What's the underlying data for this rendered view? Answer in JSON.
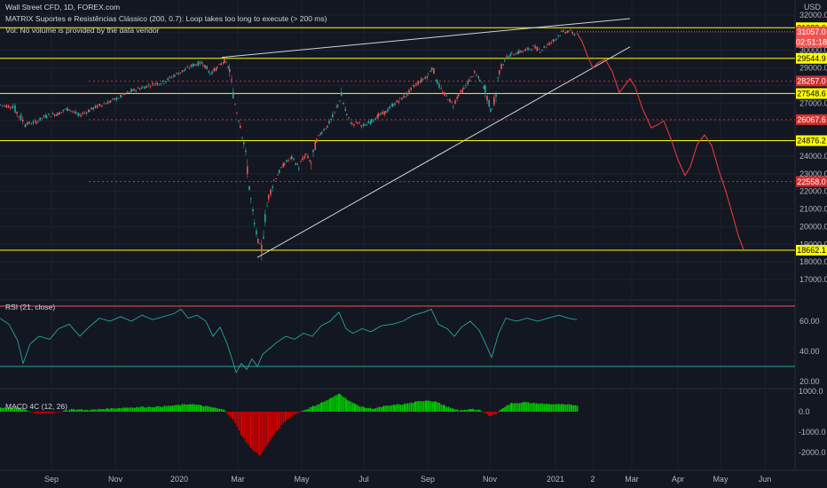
{
  "header": {
    "symbol": "Wall Street CFD, 1D, FOREX.com",
    "indicator": "MATRIX Suportes e Resistências Clássico (200, 0.7): Loop takes too long to execute (> 200 ms)",
    "volume_note": "Vol: No volume is provided by the data vendor",
    "currency": "USD"
  },
  "colors": {
    "background": "#131722",
    "grid": "#1e222d",
    "up": "#26a69a",
    "down": "#ef5350",
    "support": "#ffff00",
    "dotted": "#d32f2f",
    "projection": "#e53935",
    "trendline": "#d1d4dc",
    "rsi": "#26a69a",
    "rsi_band": "#ef5350",
    "macd_up": "#00c800",
    "macd_down": "#d00000"
  },
  "chart_data": [
    {
      "type": "candlestick",
      "title": "Wall Street CFD, 1D, FOREX.com",
      "ylim": [
        17000,
        32000
      ],
      "y_ticks": [
        32000,
        31000,
        30000,
        29000,
        28000,
        27000,
        26000,
        25000,
        24000,
        23000,
        22000,
        21000,
        20000,
        19000,
        18000,
        17000
      ],
      "x_ticks": [
        "Sep",
        "Nov",
        "2020",
        "Mar",
        "May",
        "Jul",
        "Sep",
        "Nov",
        "2021",
        "2",
        "Mar",
        "Apr",
        "May",
        "Jun"
      ],
      "price_path": [
        {
          "x": 0,
          "y": 26900
        },
        {
          "x": 14,
          "y": 26800
        },
        {
          "x": 28,
          "y": 25800
        },
        {
          "x": 40,
          "y": 25950
        },
        {
          "x": 52,
          "y": 26300
        },
        {
          "x": 64,
          "y": 26400
        },
        {
          "x": 76,
          "y": 26700
        },
        {
          "x": 88,
          "y": 26300
        },
        {
          "x": 100,
          "y": 26600
        },
        {
          "x": 112,
          "y": 26900
        },
        {
          "x": 124,
          "y": 27100
        },
        {
          "x": 136,
          "y": 27400
        },
        {
          "x": 148,
          "y": 27700
        },
        {
          "x": 160,
          "y": 27900
        },
        {
          "x": 172,
          "y": 28100
        },
        {
          "x": 184,
          "y": 28200
        },
        {
          "x": 196,
          "y": 28600
        },
        {
          "x": 208,
          "y": 28900
        },
        {
          "x": 218,
          "y": 29200
        },
        {
          "x": 228,
          "y": 29300
        },
        {
          "x": 236,
          "y": 28700
        },
        {
          "x": 244,
          "y": 29000
        },
        {
          "x": 252,
          "y": 29400
        },
        {
          "x": 258,
          "y": 28900
        },
        {
          "x": 262,
          "y": 27500
        },
        {
          "x": 266,
          "y": 26500
        },
        {
          "x": 270,
          "y": 25800
        },
        {
          "x": 274,
          "y": 24800
        },
        {
          "x": 278,
          "y": 23300
        },
        {
          "x": 282,
          "y": 21500
        },
        {
          "x": 286,
          "y": 20100
        },
        {
          "x": 290,
          "y": 19200
        },
        {
          "x": 294,
          "y": 18700
        },
        {
          "x": 298,
          "y": 20500
        },
        {
          "x": 302,
          "y": 21700
        },
        {
          "x": 308,
          "y": 22600
        },
        {
          "x": 314,
          "y": 23100
        },
        {
          "x": 320,
          "y": 23600
        },
        {
          "x": 328,
          "y": 23900
        },
        {
          "x": 336,
          "y": 23400
        },
        {
          "x": 344,
          "y": 24100
        },
        {
          "x": 350,
          "y": 23600
        },
        {
          "x": 356,
          "y": 24900
        },
        {
          "x": 362,
          "y": 25400
        },
        {
          "x": 368,
          "y": 25700
        },
        {
          "x": 374,
          "y": 26200
        },
        {
          "x": 380,
          "y": 26900
        },
        {
          "x": 384,
          "y": 27400
        },
        {
          "x": 390,
          "y": 26300
        },
        {
          "x": 396,
          "y": 25800
        },
        {
          "x": 402,
          "y": 25900
        },
        {
          "x": 410,
          "y": 25700
        },
        {
          "x": 418,
          "y": 26000
        },
        {
          "x": 426,
          "y": 26300
        },
        {
          "x": 434,
          "y": 26500
        },
        {
          "x": 442,
          "y": 26900
        },
        {
          "x": 450,
          "y": 27200
        },
        {
          "x": 458,
          "y": 27500
        },
        {
          "x": 466,
          "y": 28000
        },
        {
          "x": 474,
          "y": 28300
        },
        {
          "x": 482,
          "y": 28600
        },
        {
          "x": 486,
          "y": 29100
        },
        {
          "x": 492,
          "y": 28200
        },
        {
          "x": 498,
          "y": 27600
        },
        {
          "x": 504,
          "y": 27300
        },
        {
          "x": 510,
          "y": 26900
        },
        {
          "x": 516,
          "y": 27500
        },
        {
          "x": 522,
          "y": 27800
        },
        {
          "x": 528,
          "y": 28300
        },
        {
          "x": 534,
          "y": 28700
        },
        {
          "x": 540,
          "y": 28300
        },
        {
          "x": 546,
          "y": 27800
        },
        {
          "x": 552,
          "y": 26600
        },
        {
          "x": 556,
          "y": 26900
        },
        {
          "x": 562,
          "y": 28800
        },
        {
          "x": 568,
          "y": 29500
        },
        {
          "x": 576,
          "y": 29800
        },
        {
          "x": 584,
          "y": 29900
        },
        {
          "x": 592,
          "y": 30000
        },
        {
          "x": 600,
          "y": 30200
        },
        {
          "x": 608,
          "y": 30000
        },
        {
          "x": 616,
          "y": 30300
        },
        {
          "x": 624,
          "y": 30600
        },
        {
          "x": 632,
          "y": 31000
        },
        {
          "x": 640,
          "y": 31100
        },
        {
          "x": 648,
          "y": 30900
        }
      ],
      "support_levels": [
        {
          "label": "31283.6",
          "value": 31283.6
        },
        {
          "label": "29544.9",
          "value": 29544.9
        },
        {
          "label": "27548.6",
          "value": 27548.6
        },
        {
          "label": "24876.2",
          "value": 24876.2
        },
        {
          "label": "18662.1",
          "value": 18662.1
        }
      ],
      "dotted_levels": [
        {
          "label": "28257.0",
          "value": 28257.0
        },
        {
          "label": "26067.6",
          "value": 26067.6
        },
        {
          "label": "22558.0",
          "value": 22558.0
        }
      ],
      "current_price": {
        "label": "31057.0",
        "value": 31057.0,
        "countdown": "02:51:18"
      },
      "projection_path": [
        {
          "x": 650,
          "y": 31000
        },
        {
          "x": 656,
          "y": 30500
        },
        {
          "x": 662,
          "y": 29700
        },
        {
          "x": 668,
          "y": 29000
        },
        {
          "x": 674,
          "y": 29300
        },
        {
          "x": 682,
          "y": 29500
        },
        {
          "x": 690,
          "y": 28800
        },
        {
          "x": 698,
          "y": 27600
        },
        {
          "x": 704,
          "y": 28000
        },
        {
          "x": 710,
          "y": 28400
        },
        {
          "x": 716,
          "y": 27900
        },
        {
          "x": 724,
          "y": 26700
        },
        {
          "x": 734,
          "y": 25600
        },
        {
          "x": 742,
          "y": 25800
        },
        {
          "x": 748,
          "y": 26000
        },
        {
          "x": 756,
          "y": 25000
        },
        {
          "x": 764,
          "y": 23800
        },
        {
          "x": 772,
          "y": 22900
        },
        {
          "x": 778,
          "y": 23400
        },
        {
          "x": 786,
          "y": 24700
        },
        {
          "x": 794,
          "y": 25200
        },
        {
          "x": 802,
          "y": 24600
        },
        {
          "x": 810,
          "y": 23200
        },
        {
          "x": 818,
          "y": 22000
        },
        {
          "x": 826,
          "y": 20600
        },
        {
          "x": 832,
          "y": 19500
        },
        {
          "x": 838,
          "y": 18700
        }
      ],
      "trendlines": [
        {
          "name": "upper",
          "from": {
            "x": 250,
            "y": 29600
          },
          "to": {
            "x": 710,
            "y": 31800
          }
        },
        {
          "name": "lower",
          "from": {
            "x": 290,
            "y": 18250
          },
          "to": {
            "x": 710,
            "y": 30200
          }
        }
      ]
    },
    {
      "type": "line",
      "title": "RSI (21, close)",
      "ylim": [
        20,
        80
      ],
      "y_ticks": [
        60.0,
        40.0,
        20.0
      ],
      "bands": [
        70,
        30
      ],
      "values": [
        {
          "x": 0,
          "y": 62
        },
        {
          "x": 10,
          "y": 58
        },
        {
          "x": 20,
          "y": 47
        },
        {
          "x": 26,
          "y": 32
        },
        {
          "x": 34,
          "y": 45
        },
        {
          "x": 44,
          "y": 50
        },
        {
          "x": 56,
          "y": 48
        },
        {
          "x": 66,
          "y": 55
        },
        {
          "x": 78,
          "y": 58
        },
        {
          "x": 90,
          "y": 50
        },
        {
          "x": 100,
          "y": 56
        },
        {
          "x": 112,
          "y": 62
        },
        {
          "x": 124,
          "y": 60
        },
        {
          "x": 136,
          "y": 63
        },
        {
          "x": 148,
          "y": 60
        },
        {
          "x": 160,
          "y": 64
        },
        {
          "x": 172,
          "y": 61
        },
        {
          "x": 184,
          "y": 63
        },
        {
          "x": 196,
          "y": 65
        },
        {
          "x": 204,
          "y": 68
        },
        {
          "x": 212,
          "y": 62
        },
        {
          "x": 222,
          "y": 64
        },
        {
          "x": 232,
          "y": 60
        },
        {
          "x": 240,
          "y": 50
        },
        {
          "x": 248,
          "y": 56
        },
        {
          "x": 256,
          "y": 45
        },
        {
          "x": 262,
          "y": 34
        },
        {
          "x": 266,
          "y": 26
        },
        {
          "x": 272,
          "y": 32
        },
        {
          "x": 278,
          "y": 28
        },
        {
          "x": 284,
          "y": 35
        },
        {
          "x": 290,
          "y": 30
        },
        {
          "x": 296,
          "y": 38
        },
        {
          "x": 304,
          "y": 42
        },
        {
          "x": 312,
          "y": 46
        },
        {
          "x": 322,
          "y": 50
        },
        {
          "x": 332,
          "y": 48
        },
        {
          "x": 342,
          "y": 52
        },
        {
          "x": 352,
          "y": 50
        },
        {
          "x": 362,
          "y": 57
        },
        {
          "x": 372,
          "y": 60
        },
        {
          "x": 382,
          "y": 66
        },
        {
          "x": 390,
          "y": 55
        },
        {
          "x": 398,
          "y": 52
        },
        {
          "x": 408,
          "y": 55
        },
        {
          "x": 418,
          "y": 53
        },
        {
          "x": 430,
          "y": 57
        },
        {
          "x": 442,
          "y": 58
        },
        {
          "x": 454,
          "y": 60
        },
        {
          "x": 466,
          "y": 64
        },
        {
          "x": 478,
          "y": 66
        },
        {
          "x": 486,
          "y": 68
        },
        {
          "x": 494,
          "y": 58
        },
        {
          "x": 504,
          "y": 55
        },
        {
          "x": 512,
          "y": 50
        },
        {
          "x": 520,
          "y": 56
        },
        {
          "x": 530,
          "y": 60
        },
        {
          "x": 540,
          "y": 54
        },
        {
          "x": 548,
          "y": 44
        },
        {
          "x": 554,
          "y": 36
        },
        {
          "x": 562,
          "y": 52
        },
        {
          "x": 570,
          "y": 62
        },
        {
          "x": 582,
          "y": 60
        },
        {
          "x": 594,
          "y": 62
        },
        {
          "x": 606,
          "y": 60
        },
        {
          "x": 618,
          "y": 62
        },
        {
          "x": 630,
          "y": 64
        },
        {
          "x": 640,
          "y": 62
        },
        {
          "x": 650,
          "y": 61
        }
      ]
    },
    {
      "type": "bar",
      "title": "MACD 4C (12, 26)",
      "ylim": [
        -2300,
        1100
      ],
      "y_ticks": [
        1000.0,
        0.0,
        -1000.0,
        -2000.0
      ],
      "histogram": [
        {
          "x": 0,
          "y": 200
        },
        {
          "x": 20,
          "y": 180
        },
        {
          "x": 40,
          "y": -80
        },
        {
          "x": 60,
          "y": -60
        },
        {
          "x": 80,
          "y": 120
        },
        {
          "x": 100,
          "y": 80
        },
        {
          "x": 120,
          "y": 150
        },
        {
          "x": 140,
          "y": 200
        },
        {
          "x": 160,
          "y": 230
        },
        {
          "x": 180,
          "y": 250
        },
        {
          "x": 200,
          "y": 320
        },
        {
          "x": 214,
          "y": 380
        },
        {
          "x": 226,
          "y": 300
        },
        {
          "x": 240,
          "y": 200
        },
        {
          "x": 252,
          "y": 80
        },
        {
          "x": 262,
          "y": -400
        },
        {
          "x": 272,
          "y": -1200
        },
        {
          "x": 282,
          "y": -1800
        },
        {
          "x": 292,
          "y": -2150
        },
        {
          "x": 302,
          "y": -1500
        },
        {
          "x": 312,
          "y": -900
        },
        {
          "x": 322,
          "y": -400
        },
        {
          "x": 332,
          "y": -100
        },
        {
          "x": 342,
          "y": 80
        },
        {
          "x": 352,
          "y": 260
        },
        {
          "x": 362,
          "y": 450
        },
        {
          "x": 372,
          "y": 650
        },
        {
          "x": 382,
          "y": 900
        },
        {
          "x": 390,
          "y": 600
        },
        {
          "x": 400,
          "y": 350
        },
        {
          "x": 410,
          "y": 200
        },
        {
          "x": 420,
          "y": 150
        },
        {
          "x": 432,
          "y": 260
        },
        {
          "x": 444,
          "y": 330
        },
        {
          "x": 456,
          "y": 380
        },
        {
          "x": 468,
          "y": 480
        },
        {
          "x": 480,
          "y": 560
        },
        {
          "x": 490,
          "y": 500
        },
        {
          "x": 500,
          "y": 300
        },
        {
          "x": 510,
          "y": 120
        },
        {
          "x": 520,
          "y": 60
        },
        {
          "x": 530,
          "y": 150
        },
        {
          "x": 540,
          "y": 60
        },
        {
          "x": 550,
          "y": -180
        },
        {
          "x": 558,
          "y": -120
        },
        {
          "x": 566,
          "y": 200
        },
        {
          "x": 576,
          "y": 420
        },
        {
          "x": 590,
          "y": 460
        },
        {
          "x": 604,
          "y": 400
        },
        {
          "x": 618,
          "y": 380
        },
        {
          "x": 632,
          "y": 350
        },
        {
          "x": 650,
          "y": 320
        }
      ]
    }
  ]
}
